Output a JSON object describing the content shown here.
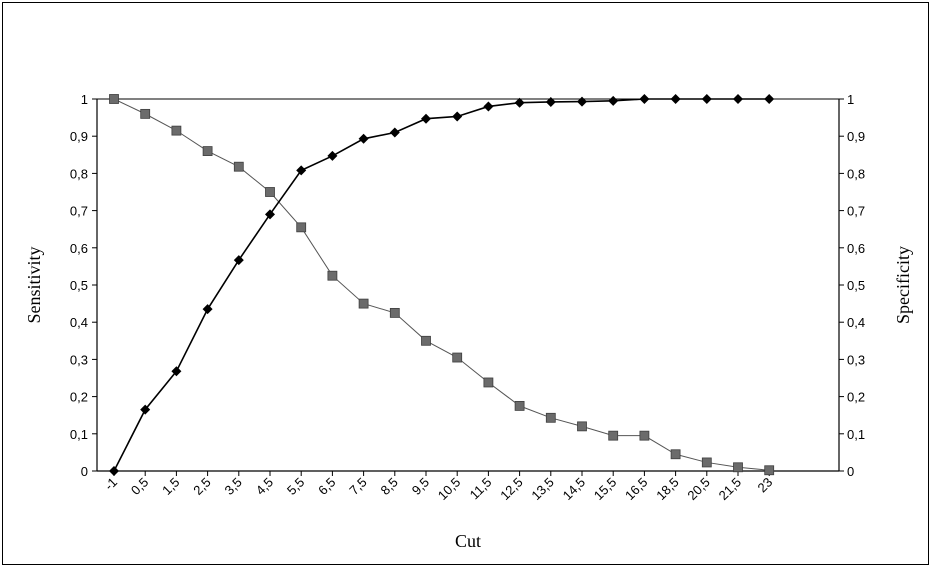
{
  "chart_data": {
    "type": "line",
    "title": "",
    "xlabel": "Cut",
    "ylabel": "Sensitivity",
    "ylabel_right": "Specificity",
    "categories": [
      "-1",
      "0,5",
      "1,5",
      "2,5",
      "3,5",
      "4,5",
      "5,5",
      "6,5",
      "7,5",
      "8,5",
      "9,5",
      "10,5",
      "11,5",
      "12,5",
      "13,5",
      "14,5",
      "15,5",
      "16,5",
      "18,5",
      "20,5",
      "21,5",
      "23"
    ],
    "ylim": [
      0,
      1
    ],
    "yticks": [
      "0",
      "0,1",
      "0,2",
      "0,3",
      "0,4",
      "0,5",
      "0,6",
      "0,7",
      "0,8",
      "0,9",
      "1"
    ],
    "grid": false,
    "series": [
      {
        "axis": "left",
        "marker": "diamond",
        "color": "#000000",
        "values": [
          0,
          0.165,
          0.268,
          0.435,
          0.567,
          0.69,
          0.808,
          0.847,
          0.893,
          0.91,
          0.947,
          0.953,
          0.98,
          0.99,
          0.992,
          0.993,
          0.995,
          1.0,
          1.0,
          1.0,
          1.0,
          1.0
        ]
      },
      {
        "axis": "right",
        "marker": "square",
        "color": "#6b6b6b",
        "values": [
          1.0,
          0.96,
          0.915,
          0.86,
          0.818,
          0.75,
          0.655,
          0.525,
          0.45,
          0.425,
          0.35,
          0.305,
          0.238,
          0.175,
          0.143,
          0.12,
          0.095,
          0.095,
          0.045,
          0.023,
          0.01,
          0.002
        ]
      }
    ]
  }
}
